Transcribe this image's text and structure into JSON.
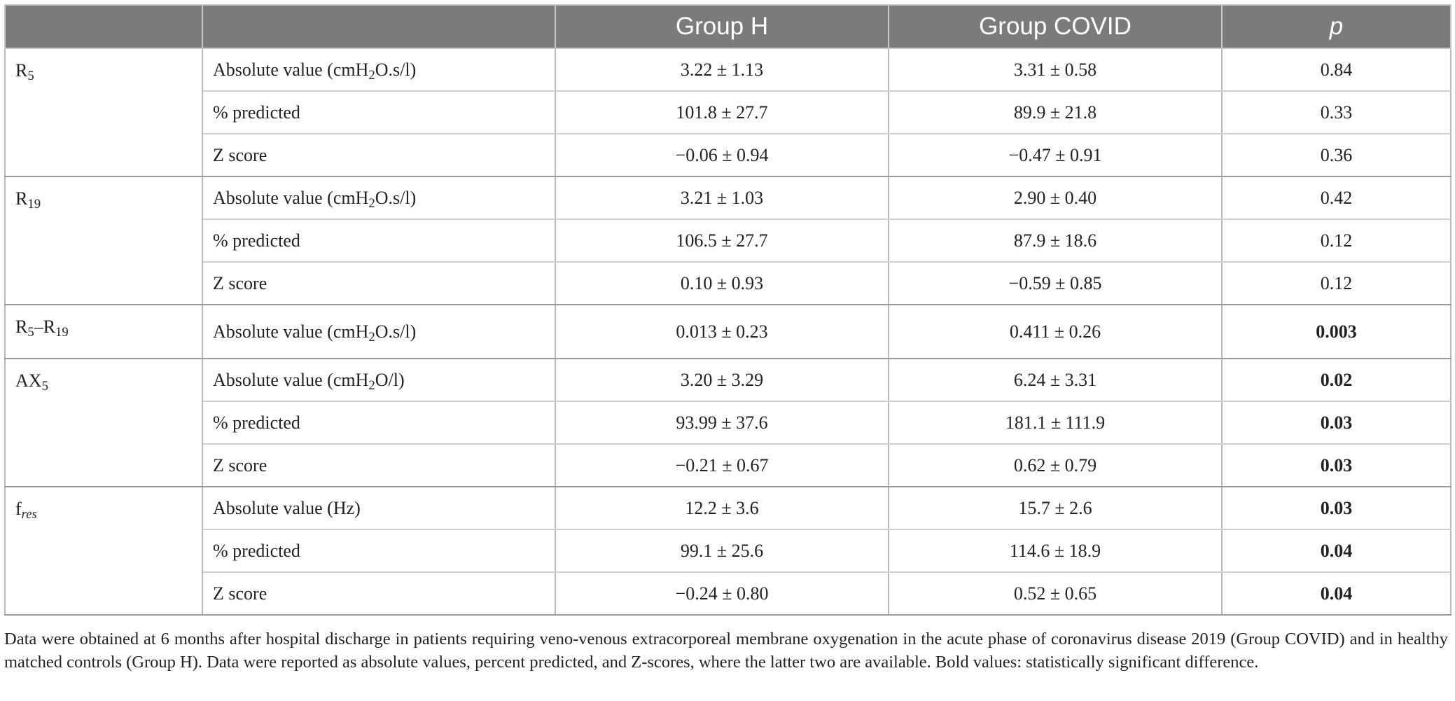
{
  "table": {
    "headers": [
      "",
      "",
      "Group H",
      "Group COVID",
      "p"
    ],
    "groups": [
      {
        "parameter": {
          "base": "R",
          "sub": "5"
        },
        "rows": [
          {
            "measure_prefix": "Absolute value (cmH",
            "measure_sub": "2",
            "measure_suffix": "O.s/l)",
            "group_h": "3.22 ± 1.13",
            "group_covid": "3.31 ± 0.58",
            "p": "0.84",
            "significant": false
          },
          {
            "measure_prefix": "% predicted",
            "measure_sub": "",
            "measure_suffix": "",
            "group_h": "101.8 ± 27.7",
            "group_covid": "89.9 ± 21.8",
            "p": "0.33",
            "significant": false
          },
          {
            "measure_prefix": "Z score",
            "measure_sub": "",
            "measure_suffix": "",
            "group_h": "−0.06 ± 0.94",
            "group_covid": "−0.47 ± 0.91",
            "p": "0.36",
            "significant": false
          }
        ]
      },
      {
        "parameter": {
          "base": "R",
          "sub": "19"
        },
        "rows": [
          {
            "measure_prefix": "Absolute value (cmH",
            "measure_sub": "2",
            "measure_suffix": "O.s/l)",
            "group_h": "3.21 ± 1.03",
            "group_covid": "2.90 ± 0.40",
            "p": "0.42",
            "significant": false
          },
          {
            "measure_prefix": "% predicted",
            "measure_sub": "",
            "measure_suffix": "",
            "group_h": "106.5 ± 27.7",
            "group_covid": "87.9 ± 18.6",
            "p": "0.12",
            "significant": false
          },
          {
            "measure_prefix": "Z score",
            "measure_sub": "",
            "measure_suffix": "",
            "group_h": "0.10 ± 0.93",
            "group_covid": "−0.59 ± 0.85",
            "p": "0.12",
            "significant": false
          }
        ]
      },
      {
        "parameter": {
          "base": "R",
          "sub": "5",
          "mid": "–R",
          "sub2": "19"
        },
        "rows": [
          {
            "measure_prefix": "Absolute value (cmH",
            "measure_sub": "2",
            "measure_suffix": "O.s/l)",
            "group_h": "0.013 ± 0.23",
            "group_covid": "0.411 ± 0.26",
            "p": "0.003",
            "significant": true
          }
        ]
      },
      {
        "parameter": {
          "base": "AX",
          "sub": "5"
        },
        "rows": [
          {
            "measure_prefix": "Absolute value (cmH",
            "measure_sub": "2",
            "measure_suffix": "O/l)",
            "group_h": "3.20 ± 3.29",
            "group_covid": "6.24 ± 3.31",
            "p": "0.02",
            "significant": true
          },
          {
            "measure_prefix": "% predicted",
            "measure_sub": "",
            "measure_suffix": "",
            "group_h": "93.99 ± 37.6",
            "group_covid": "181.1 ± 111.9",
            "p": "0.03",
            "significant": true
          },
          {
            "measure_prefix": "Z score",
            "measure_sub": "",
            "measure_suffix": "",
            "group_h": "−0.21 ± 0.67",
            "group_covid": "0.62 ± 0.79",
            "p": "0.03",
            "significant": true
          }
        ]
      },
      {
        "parameter": {
          "base": "f",
          "sub": "res",
          "sub_italic": true
        },
        "rows": [
          {
            "measure_prefix": "Absolute value (Hz)",
            "measure_sub": "",
            "measure_suffix": "",
            "group_h": "12.2 ± 3.6",
            "group_covid": "15.7 ± 2.6",
            "p": "0.03",
            "significant": true
          },
          {
            "measure_prefix": "% predicted",
            "measure_sub": "",
            "measure_suffix": "",
            "group_h": "99.1 ± 25.6",
            "group_covid": "114.6 ± 18.9",
            "p": "0.04",
            "significant": true
          },
          {
            "measure_prefix": "Z score",
            "measure_sub": "",
            "measure_suffix": "",
            "group_h": "−0.24 ± 0.80",
            "group_covid": "0.52 ± 0.65",
            "p": "0.04",
            "significant": true
          }
        ]
      }
    ]
  },
  "footnote": "Data were obtained at 6 months after hospital discharge in patients requiring veno-venous extracorporeal membrane oxygenation in the acute phase of coronavirus disease 2019 (Group COVID) and in healthy matched controls (Group H). Data were reported as absolute values, percent predicted, and Z-scores, where the latter two are available. Bold values: statistically significant difference.",
  "colors": {
    "header_bg": "#7b7b7b",
    "header_text": "#ffffff",
    "text": "#222222"
  }
}
